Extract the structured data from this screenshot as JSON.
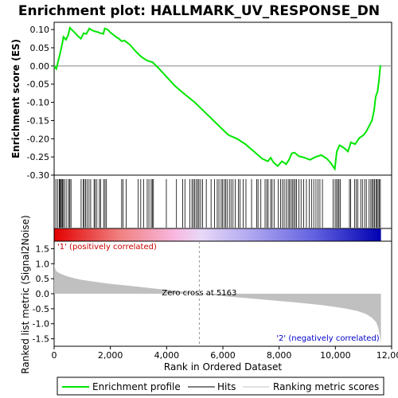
{
  "chart_data": {
    "type": "line",
    "title": "Enrichment plot: HALLMARK_UV_RESPONSE_DN",
    "xlabel": "Rank in Ordered Dataset",
    "x_ticks": [
      {
        "value": 0,
        "label": "0"
      },
      {
        "value": 2000,
        "label": "2,000"
      },
      {
        "value": 4000,
        "label": "4,000"
      },
      {
        "value": 6000,
        "label": "6,000"
      },
      {
        "value": 8000,
        "label": "8,000"
      },
      {
        "value": 10000,
        "label": "10,000"
      },
      {
        "value": 12000,
        "label": "12,000"
      }
    ],
    "xlim": [
      0,
      12000
    ],
    "es_panel": {
      "ylabel": "Enrichment score (ES)",
      "ylim": [
        -0.3,
        0.12
      ],
      "y_ticks": [
        {
          "value": 0.1,
          "label": "0.10"
        },
        {
          "value": 0.05,
          "label": "0.05"
        },
        {
          "value": 0.0,
          "label": "0.00"
        },
        {
          "value": -0.05,
          "label": "-0.05"
        },
        {
          "value": -0.1,
          "label": "-0.10"
        },
        {
          "value": -0.15,
          "label": "-0.15"
        },
        {
          "value": -0.2,
          "label": "-0.20"
        },
        {
          "value": -0.25,
          "label": "-0.25"
        },
        {
          "value": -0.3,
          "label": "-0.30"
        }
      ],
      "series_color": "#00e600",
      "points": [
        [
          0,
          0.0
        ],
        [
          80,
          -0.008
        ],
        [
          150,
          0.015
        ],
        [
          230,
          0.04
        ],
        [
          300,
          0.065
        ],
        [
          330,
          0.08
        ],
        [
          420,
          0.072
        ],
        [
          500,
          0.085
        ],
        [
          560,
          0.105
        ],
        [
          650,
          0.098
        ],
        [
          750,
          0.09
        ],
        [
          850,
          0.082
        ],
        [
          950,
          0.075
        ],
        [
          1050,
          0.09
        ],
        [
          1150,
          0.088
        ],
        [
          1250,
          0.103
        ],
        [
          1350,
          0.098
        ],
        [
          1450,
          0.095
        ],
        [
          1550,
          0.093
        ],
        [
          1650,
          0.09
        ],
        [
          1750,
          0.088
        ],
        [
          1800,
          0.103
        ],
        [
          1900,
          0.1
        ],
        [
          2000,
          0.092
        ],
        [
          2100,
          0.086
        ],
        [
          2200,
          0.08
        ],
        [
          2300,
          0.075
        ],
        [
          2400,
          0.068
        ],
        [
          2500,
          0.07
        ],
        [
          2700,
          0.058
        ],
        [
          2900,
          0.04
        ],
        [
          3100,
          0.025
        ],
        [
          3300,
          0.015
        ],
        [
          3500,
          0.01
        ],
        [
          3700,
          -0.005
        ],
        [
          4000,
          -0.03
        ],
        [
          4300,
          -0.055
        ],
        [
          4600,
          -0.075
        ],
        [
          5000,
          -0.1
        ],
        [
          5400,
          -0.13
        ],
        [
          5800,
          -0.16
        ],
        [
          6000,
          -0.175
        ],
        [
          6200,
          -0.19
        ],
        [
          6500,
          -0.2
        ],
        [
          6800,
          -0.215
        ],
        [
          7100,
          -0.235
        ],
        [
          7400,
          -0.255
        ],
        [
          7600,
          -0.262
        ],
        [
          7700,
          -0.252
        ],
        [
          7800,
          -0.265
        ],
        [
          7950,
          -0.275
        ],
        [
          8100,
          -0.262
        ],
        [
          8250,
          -0.27
        ],
        [
          8350,
          -0.258
        ],
        [
          8450,
          -0.24
        ],
        [
          8550,
          -0.238
        ],
        [
          8700,
          -0.248
        ],
        [
          8900,
          -0.252
        ],
        [
          9100,
          -0.258
        ],
        [
          9300,
          -0.25
        ],
        [
          9500,
          -0.245
        ],
        [
          9700,
          -0.255
        ],
        [
          9850,
          -0.268
        ],
        [
          9980,
          -0.283
        ],
        [
          10050,
          -0.235
        ],
        [
          10150,
          -0.218
        ],
        [
          10300,
          -0.225
        ],
        [
          10450,
          -0.235
        ],
        [
          10550,
          -0.21
        ],
        [
          10700,
          -0.215
        ],
        [
          10850,
          -0.198
        ],
        [
          11000,
          -0.19
        ],
        [
          11100,
          -0.18
        ],
        [
          11200,
          -0.165
        ],
        [
          11300,
          -0.15
        ],
        [
          11380,
          -0.12
        ],
        [
          11430,
          -0.085
        ],
        [
          11500,
          -0.07
        ],
        [
          11550,
          -0.04
        ],
        [
          11600,
          0.002
        ]
      ]
    },
    "hits_panel": {
      "ylabel": "",
      "hits": [
        60,
        120,
        180,
        200,
        230,
        260,
        300,
        330,
        380,
        450,
        520,
        560,
        600,
        960,
        1030,
        1070,
        1120,
        1170,
        1240,
        1300,
        1420,
        1460,
        1520,
        1610,
        1650,
        1760,
        1810,
        1860,
        2400,
        2450,
        2560,
        2990,
        3080,
        3180,
        3310,
        3370,
        3450,
        3490,
        3530,
        3990,
        4350,
        4570,
        4650,
        4820,
        4900,
        4950,
        5000,
        5050,
        5110,
        5150,
        5210,
        5280,
        5410,
        5580,
        5700,
        5800,
        5860,
        5940,
        5990,
        6050,
        6100,
        6150,
        6230,
        6290,
        6360,
        6440,
        6550,
        6610,
        6720,
        6820,
        7020,
        7200,
        7250,
        7350,
        7500,
        7560,
        7610,
        7700,
        7750,
        7820,
        7970,
        8050,
        8120,
        8180,
        8250,
        8320,
        8360,
        8420,
        8470,
        8520,
        8570,
        8620,
        8700,
        8780,
        8870,
        8970,
        9070,
        9150,
        9230,
        9310,
        9380,
        9450,
        9540,
        9920,
        9990,
        10040,
        10090,
        10130,
        10180,
        10500,
        10540,
        10680,
        10740,
        10800,
        10900,
        10960,
        11040,
        11100,
        11200,
        11260,
        11310,
        11350,
        11390,
        11440,
        11480,
        11520,
        11560,
        11600
      ]
    },
    "ranked_metric_panel": {
      "ylabel": "Ranked list metric (Signal2Noise)",
      "ylim": [
        -1.75,
        1.75
      ],
      "y_ticks": [
        {
          "value": 1.5,
          "label": "1.5"
        },
        {
          "value": 1.0,
          "label": "1.0"
        },
        {
          "value": 0.5,
          "label": "0.5"
        },
        {
          "value": 0.0,
          "label": "0.0"
        },
        {
          "value": -0.5,
          "label": "-0.5"
        },
        {
          "value": -1.0,
          "label": "-1.0"
        },
        {
          "value": -1.5,
          "label": "-1.5"
        }
      ],
      "fill_color": "#c0c0c0",
      "points": [
        [
          0,
          1.0
        ],
        [
          30,
          0.85
        ],
        [
          80,
          0.75
        ],
        [
          200,
          0.68
        ],
        [
          400,
          0.6
        ],
        [
          700,
          0.52
        ],
        [
          1000,
          0.46
        ],
        [
          1500,
          0.39
        ],
        [
          2000,
          0.33
        ],
        [
          2500,
          0.28
        ],
        [
          3000,
          0.23
        ],
        [
          3500,
          0.18
        ],
        [
          4000,
          0.13
        ],
        [
          4500,
          0.08
        ],
        [
          5000,
          0.03
        ],
        [
          5163,
          0.0
        ],
        [
          5600,
          -0.04
        ],
        [
          6000,
          -0.08
        ],
        [
          6500,
          -0.12
        ],
        [
          7000,
          -0.16
        ],
        [
          7500,
          -0.2
        ],
        [
          8000,
          -0.24
        ],
        [
          8500,
          -0.28
        ],
        [
          9000,
          -0.33
        ],
        [
          9500,
          -0.38
        ],
        [
          10000,
          -0.44
        ],
        [
          10400,
          -0.5
        ],
        [
          10800,
          -0.58
        ],
        [
          11100,
          -0.68
        ],
        [
          11300,
          -0.8
        ],
        [
          11450,
          -0.95
        ],
        [
          11530,
          -1.15
        ],
        [
          11580,
          -1.4
        ],
        [
          11620,
          -1.65
        ]
      ],
      "zero_cross": 5163,
      "zero_cross_label": "Zero cross at 5163",
      "pos_label": "'1' (positively correlated)",
      "pos_color": "#cc0000",
      "neg_label": "'2' (negatively correlated)",
      "neg_color": "#0000cc"
    },
    "n_genes": 11620,
    "legend": {
      "position": "bottom",
      "items": [
        {
          "label": "Enrichment profile",
          "color": "#00e600"
        },
        {
          "label": "Hits",
          "color": "#000000"
        },
        {
          "label": "Ranking metric scores",
          "color": "#c0c0c0"
        }
      ]
    }
  }
}
